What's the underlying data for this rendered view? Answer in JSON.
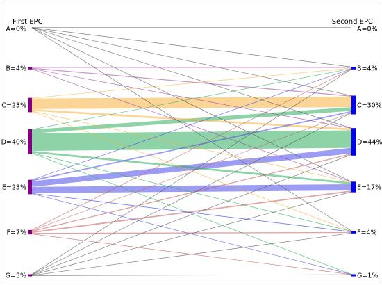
{
  "chart_data": {
    "type": "sankey",
    "left_title": "First EPC",
    "right_title": "Second EPC",
    "left_nodes": [
      {
        "name": "A",
        "label": "A=0%",
        "pct": 0
      },
      {
        "name": "B",
        "label": "B=4%",
        "pct": 4
      },
      {
        "name": "C",
        "label": "C=23%",
        "pct": 23
      },
      {
        "name": "D",
        "label": "D=40%",
        "pct": 40
      },
      {
        "name": "E",
        "label": "E=23%",
        "pct": 23
      },
      {
        "name": "F",
        "label": "F=7%",
        "pct": 7
      },
      {
        "name": "G",
        "label": "G=3%",
        "pct": 3
      }
    ],
    "right_nodes": [
      {
        "name": "A",
        "label": "A=0%",
        "pct": 0
      },
      {
        "name": "B",
        "label": "B=4%",
        "pct": 4
      },
      {
        "name": "C",
        "label": "C=30%",
        "pct": 30
      },
      {
        "name": "D",
        "label": "D=44%",
        "pct": 44
      },
      {
        "name": "E",
        "label": "E=17%",
        "pct": 17
      },
      {
        "name": "F",
        "label": "F=4%",
        "pct": 4
      },
      {
        "name": "G",
        "label": "G=1%",
        "pct": 1
      }
    ],
    "flows": [
      {
        "from": "A",
        "to": "A",
        "value": 0.1
      },
      {
        "from": "A",
        "to": "B",
        "value": 0.1
      },
      {
        "from": "A",
        "to": "C",
        "value": 0.1
      },
      {
        "from": "A",
        "to": "D",
        "value": 0.1
      },
      {
        "from": "A",
        "to": "E",
        "value": 0.1
      },
      {
        "from": "A",
        "to": "F",
        "value": 0.1
      },
      {
        "from": "B",
        "to": "B",
        "value": 1.4
      },
      {
        "from": "B",
        "to": "C",
        "value": 1.4
      },
      {
        "from": "B",
        "to": "D",
        "value": 0.5
      },
      {
        "from": "B",
        "to": "E",
        "value": 0.3
      },
      {
        "from": "C",
        "to": "B",
        "value": 1.0
      },
      {
        "from": "C",
        "to": "C",
        "value": 17
      },
      {
        "from": "C",
        "to": "D",
        "value": 3.0
      },
      {
        "from": "C",
        "to": "E",
        "value": 0.6
      },
      {
        "from": "C",
        "to": "F",
        "value": 0.2
      },
      {
        "from": "D",
        "to": "B",
        "value": 0.5
      },
      {
        "from": "D",
        "to": "C",
        "value": 6
      },
      {
        "from": "D",
        "to": "D",
        "value": 28
      },
      {
        "from": "D",
        "to": "E",
        "value": 3
      },
      {
        "from": "D",
        "to": "F",
        "value": 0.6
      },
      {
        "from": "D",
        "to": "G",
        "value": 0.2
      },
      {
        "from": "E",
        "to": "B",
        "value": 0.3
      },
      {
        "from": "E",
        "to": "C",
        "value": 2.0
      },
      {
        "from": "E",
        "to": "D",
        "value": 9
      },
      {
        "from": "E",
        "to": "E",
        "value": 10
      },
      {
        "from": "E",
        "to": "F",
        "value": 0.9
      },
      {
        "from": "E",
        "to": "G",
        "value": 0.1
      },
      {
        "from": "F",
        "to": "B",
        "value": 0.3
      },
      {
        "from": "F",
        "to": "C",
        "value": 1.0
      },
      {
        "from": "F",
        "to": "D",
        "value": 1.5
      },
      {
        "from": "F",
        "to": "E",
        "value": 2.0
      },
      {
        "from": "F",
        "to": "F",
        "value": 1.5
      },
      {
        "from": "F",
        "to": "G",
        "value": 0.3
      },
      {
        "from": "G",
        "to": "B",
        "value": 0.1
      },
      {
        "from": "G",
        "to": "C",
        "value": 0.4
      },
      {
        "from": "G",
        "to": "D",
        "value": 0.6
      },
      {
        "from": "G",
        "to": "E",
        "value": 0.6
      },
      {
        "from": "G",
        "to": "F",
        "value": 0.3
      },
      {
        "from": "G",
        "to": "G",
        "value": 0.2
      }
    ],
    "flow_colors": {
      "A": "#555555",
      "B": "#9b3fa0",
      "C": "#f5b340",
      "D": "#2fae5f",
      "E": "#4a4ae8",
      "F": "#c45a5a",
      "G": "#555555"
    },
    "left_node_color": "#800080",
    "right_node_color": "#0000ee",
    "grid": false,
    "legend": "none"
  }
}
